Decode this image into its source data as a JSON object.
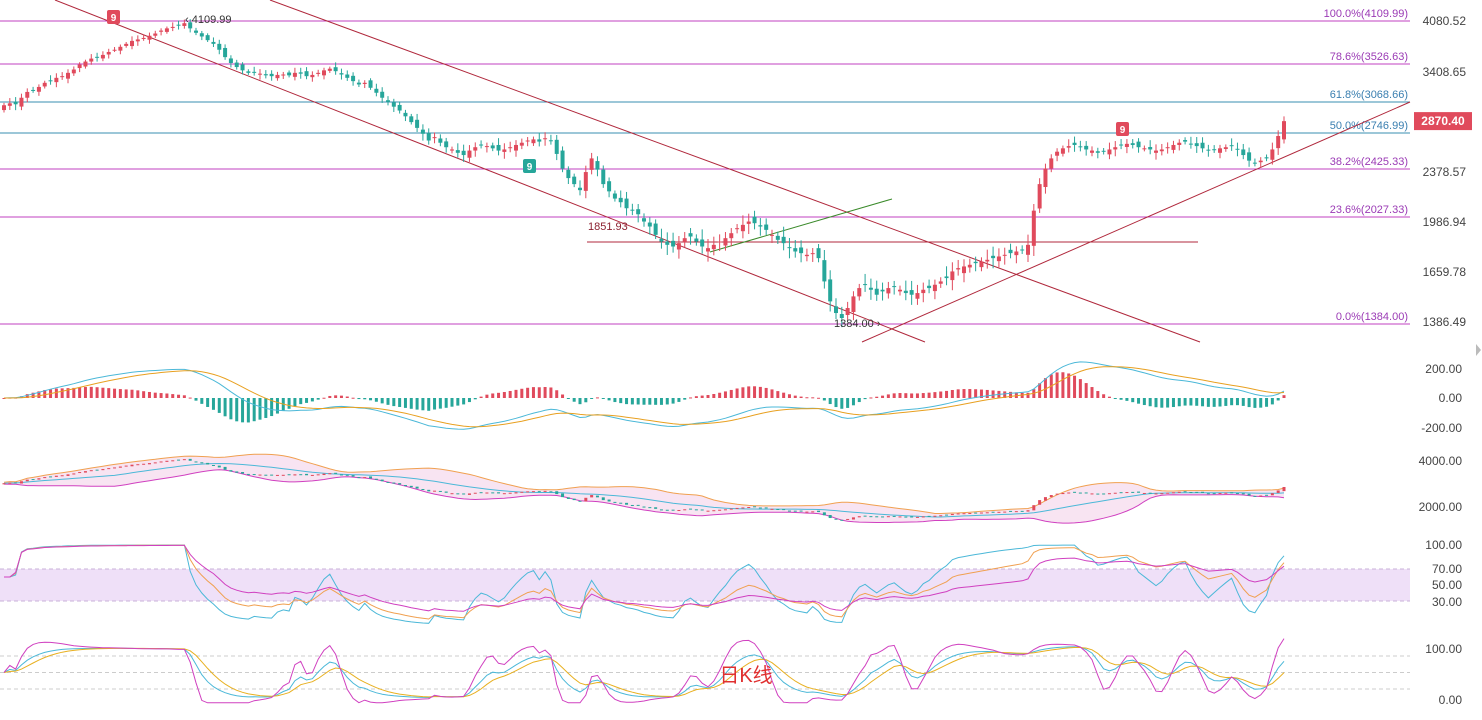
{
  "chart_data": {
    "type": "candlestick",
    "caption": "日K线",
    "colors": {
      "up": "#e04a5c",
      "down": "#26a69a",
      "fib": "#c040c0",
      "fib_text": "#9b3bb5",
      "channel": "#b0283c",
      "support": "#b0283c",
      "green_line": "#3a8a2a",
      "price_tag": "#e04a5c",
      "badge_red": "#e04a5c",
      "badge_green": "#26a69a"
    },
    "price_axis": {
      "ticks": [
        "4080.52",
        "3408.65",
        "2378.57",
        "1986.94",
        "1659.78",
        "1386.49"
      ],
      "last_price": "2870.40"
    },
    "fib_levels": [
      {
        "label": "100.0%(4109.99)",
        "price": 4109.99
      },
      {
        "label": "78.6%(3526.63)",
        "price": 3526.63
      },
      {
        "label": "61.8%(3068.66)",
        "price": 3068.66
      },
      {
        "label": "50.0%(2746.99)",
        "price": 2746.99
      },
      {
        "label": "38.2%(2425.33)",
        "price": 2425.33
      },
      {
        "label": "23.6%(2027.33)",
        "price": 2027.33
      },
      {
        "label": "0.0%(1384.00)",
        "price": 1384.0
      }
    ],
    "annotations": {
      "high": "4109.99",
      "low": "1384.00",
      "level": "1851.93",
      "badge_a": "9",
      "badge_b": "9",
      "badge_c": "9"
    },
    "closes": [
      3035,
      3055,
      3045,
      3120,
      3190,
      3210,
      3250,
      3300,
      3320,
      3360,
      3380,
      3420,
      3460,
      3520,
      3560,
      3600,
      3620,
      3650,
      3690,
      3720,
      3760,
      3800,
      3840,
      3860,
      3880,
      3910,
      3940,
      3980,
      4010,
      4030,
      4055,
      4080,
      4010,
      3950,
      3900,
      3850,
      3800,
      3720,
      3620,
      3540,
      3490,
      3450,
      3420,
      3430,
      3410,
      3390,
      3380,
      3395,
      3400,
      3390,
      3420,
      3410,
      3380,
      3395,
      3420,
      3450,
      3470,
      3440,
      3400,
      3360,
      3320,
      3280,
      3300,
      3240,
      3180,
      3120,
      3070,
      3020,
      2980,
      2920,
      2860,
      2800,
      2740,
      2680,
      2710,
      2660,
      2620,
      2600,
      2570,
      2550,
      2590,
      2620,
      2640,
      2630,
      2610,
      2590,
      2600,
      2620,
      2640,
      2660,
      2680,
      2690,
      2670,
      2700,
      2680,
      2560,
      2430,
      2350,
      2300,
      2250,
      2400,
      2520,
      2420,
      2300,
      2240,
      2180,
      2150,
      2100,
      2080,
      2050,
      2000,
      1970,
      1920,
      1880,
      1860,
      1850,
      1870,
      1900,
      1910,
      1880,
      1850,
      1840,
      1860,
      1880,
      1900,
      1930,
      1960,
      1980,
      2000,
      1990,
      1970,
      1950,
      1920,
      1890,
      1870,
      1840,
      1820,
      1810,
      1800,
      1810,
      1780,
      1640,
      1520,
      1450,
      1420,
      1480,
      1550,
      1600,
      1620,
      1590,
      1560,
      1580,
      1600,
      1610,
      1590,
      1570,
      1560,
      1570,
      1590,
      1600,
      1620,
      1640,
      1660,
      1700,
      1720,
      1730,
      1740,
      1750,
      1760,
      1770,
      1780,
      1790,
      1800,
      1810,
      1820,
      1830,
      1860,
      2080,
      2300,
      2430,
      2520,
      2580,
      2610,
      2630,
      2640,
      2620,
      2600,
      2590,
      2570,
      2580,
      2600,
      2620,
      2640,
      2650,
      2640,
      2620,
      2610,
      2600,
      2590,
      2600,
      2620,
      2640,
      2660,
      2670,
      2650,
      2630,
      2610,
      2590,
      2600,
      2610,
      2620,
      2630,
      2600,
      2550,
      2500,
      2480,
      2500,
      2520,
      2600,
      2720,
      2870
    ],
    "sub_axes": {
      "macd": [
        "200.00",
        "0.00",
        "-200.00"
      ],
      "boll": [
        "4000.00",
        "2000.00"
      ],
      "rsi": [
        "100.00",
        "70.00",
        "50.00",
        "30.00"
      ],
      "kdj": [
        "100.00",
        "0.00"
      ]
    }
  }
}
